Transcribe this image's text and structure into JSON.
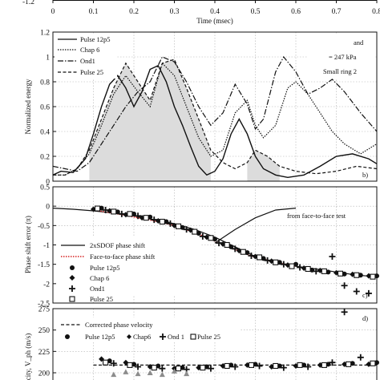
{
  "chart_data": [
    {
      "type": "line",
      "panel": "top-strip",
      "xlabel": "Time (msec)",
      "x_ticks": [
        "0",
        "0.1",
        "0.2",
        "0.3",
        "0.4",
        "0.5",
        "0.6",
        "0.7",
        "0.8"
      ],
      "y_tick_visible": "-1.2",
      "xlim": [
        0,
        0.8
      ]
    },
    {
      "type": "area",
      "panel": "b",
      "panel_label": "b)",
      "ylabel": "Normalized energy",
      "y_ticks": [
        "0",
        "0.2",
        "0.4",
        "0.6",
        "0.8",
        "1",
        "1.2"
      ],
      "ylim": [
        0,
        1.2
      ],
      "xlim": [
        0,
        0.8
      ],
      "grid": true,
      "legend_position": "top-left",
      "annotations": [
        "and",
        "= 247 kPa",
        "Small ring 2"
      ],
      "series": [
        {
          "name": "Pulse 12p5",
          "style": "solid",
          "x": [
            0,
            0.02,
            0.05,
            0.08,
            0.1,
            0.12,
            0.14,
            0.16,
            0.18,
            0.2,
            0.22,
            0.24,
            0.26,
            0.28,
            0.3,
            0.32,
            0.34,
            0.36,
            0.38,
            0.4,
            0.42,
            0.44,
            0.46,
            0.48,
            0.5,
            0.52,
            0.55,
            0.58,
            0.62,
            0.66,
            0.7,
            0.74,
            0.78,
            0.8
          ],
          "y": [
            0.05,
            0.08,
            0.07,
            0.18,
            0.38,
            0.6,
            0.78,
            0.85,
            0.75,
            0.6,
            0.72,
            0.9,
            0.93,
            0.8,
            0.6,
            0.45,
            0.28,
            0.12,
            0.05,
            0.08,
            0.18,
            0.38,
            0.5,
            0.38,
            0.2,
            0.1,
            0.05,
            0.03,
            0.05,
            0.12,
            0.2,
            0.22,
            0.18,
            0.14
          ]
        },
        {
          "name": "Chap 6",
          "style": "dotted",
          "x": [
            0,
            0.03,
            0.06,
            0.09,
            0.12,
            0.15,
            0.18,
            0.21,
            0.24,
            0.27,
            0.3,
            0.33,
            0.36,
            0.39,
            0.42,
            0.45,
            0.48,
            0.5,
            0.52,
            0.55,
            0.58,
            0.6,
            0.63,
            0.66,
            0.69,
            0.72,
            0.76,
            0.8
          ],
          "y": [
            0.05,
            0.05,
            0.1,
            0.22,
            0.45,
            0.7,
            0.85,
            0.72,
            0.6,
            0.95,
            0.85,
            0.6,
            0.35,
            0.2,
            0.25,
            0.55,
            0.65,
            0.45,
            0.35,
            0.45,
            0.75,
            0.8,
            0.7,
            0.55,
            0.4,
            0.3,
            0.22,
            0.3
          ]
        },
        {
          "name": "Ond1",
          "style": "dash-dot",
          "x": [
            0,
            0.03,
            0.06,
            0.09,
            0.12,
            0.15,
            0.18,
            0.21,
            0.24,
            0.27,
            0.3,
            0.33,
            0.36,
            0.39,
            0.42,
            0.45,
            0.48,
            0.5,
            0.52,
            0.55,
            0.57,
            0.6,
            0.63,
            0.66,
            0.69,
            0.72,
            0.76,
            0.8
          ],
          "y": [
            0.12,
            0.1,
            0.08,
            0.15,
            0.3,
            0.45,
            0.6,
            0.72,
            0.8,
            1.0,
            0.96,
            0.8,
            0.6,
            0.45,
            0.55,
            0.78,
            0.62,
            0.42,
            0.5,
            0.88,
            1.0,
            0.88,
            0.7,
            0.75,
            0.82,
            0.72,
            0.55,
            0.4
          ]
        },
        {
          "name": "Pulse 25",
          "style": "dashed",
          "x": [
            0,
            0.03,
            0.06,
            0.09,
            0.12,
            0.15,
            0.18,
            0.21,
            0.24,
            0.27,
            0.3,
            0.33,
            0.36,
            0.39,
            0.42,
            0.45,
            0.48,
            0.5,
            0.53,
            0.56,
            0.6,
            0.65,
            0.7,
            0.75,
            0.8
          ],
          "y": [
            0.05,
            0.05,
            0.1,
            0.25,
            0.5,
            0.75,
            0.95,
            0.8,
            0.65,
            0.95,
            0.98,
            0.75,
            0.5,
            0.25,
            0.15,
            0.1,
            0.15,
            0.25,
            0.2,
            0.12,
            0.08,
            0.06,
            0.08,
            0.12,
            0.1
          ]
        }
      ]
    },
    {
      "type": "scatter",
      "panel": "c",
      "panel_label": "c)",
      "ylabel": "Phase shift error (π)",
      "y_ticks": [
        "0.5",
        "0",
        "-0.5",
        "-1",
        "-1.5",
        "-2",
        "-2.5"
      ],
      "ylim": [
        -2.5,
        0.5
      ],
      "xlim": [
        0,
        0.8
      ],
      "grid": true,
      "legend_position": "left",
      "annotation": "from face-to-face test",
      "lines": [
        {
          "name": "2xSDOF phase shift",
          "style": "solid",
          "x": [
            0,
            0.05,
            0.1,
            0.15,
            0.2,
            0.25,
            0.3,
            0.35,
            0.4,
            0.45,
            0.5,
            0.55,
            0.6,
            0.65,
            0.7,
            0.75,
            0.8
          ],
          "y": [
            -0.05,
            -0.08,
            -0.12,
            -0.18,
            -0.25,
            -0.35,
            -0.45,
            -0.6,
            -0.8,
            -1.05,
            -1.3,
            -1.45,
            -1.55,
            -1.62,
            -1.7,
            -1.78,
            -1.82
          ]
        },
        {
          "name": "Face-to-face phase shift",
          "style": "dotted",
          "color": "#d62020",
          "x": [
            0.1,
            0.15,
            0.2,
            0.25,
            0.3,
            0.35,
            0.4,
            0.45,
            0.5,
            0.55,
            0.6
          ],
          "y": [
            -0.1,
            -0.18,
            -0.28,
            -0.38,
            -0.5,
            -0.68,
            -0.9,
            -1.12,
            -1.32,
            -1.45,
            -1.55
          ]
        },
        {
          "name": "from face-to-face test",
          "style": "solid",
          "x": [
            0.4,
            0.45,
            0.5,
            0.55,
            0.6
          ],
          "y": [
            -0.95,
            -0.6,
            -0.3,
            -0.1,
            -0.05
          ]
        }
      ],
      "series": [
        {
          "name": "Pulse 12p5",
          "marker": "circle",
          "x": [
            0.12,
            0.16,
            0.2,
            0.24,
            0.28,
            0.32,
            0.36,
            0.4,
            0.44,
            0.48,
            0.52,
            0.56,
            0.6,
            0.64,
            0.68,
            0.72,
            0.76,
            0.8
          ],
          "y": [
            -0.05,
            -0.15,
            -0.2,
            -0.28,
            -0.4,
            -0.55,
            -0.7,
            -0.85,
            -1.05,
            -1.2,
            -1.35,
            -1.45,
            -1.5,
            -1.65,
            -1.7,
            -1.75,
            -1.78,
            -1.8
          ]
        },
        {
          "name": "Chap 6",
          "marker": "diamond",
          "x": [
            0.1,
            0.14,
            0.18,
            0.22,
            0.26,
            0.3,
            0.34,
            0.38,
            0.42,
            0.46,
            0.5,
            0.54,
            0.58,
            0.62,
            0.66,
            0.7,
            0.74,
            0.78
          ],
          "y": [
            -0.08,
            -0.12,
            -0.22,
            -0.3,
            -0.38,
            -0.5,
            -0.62,
            -0.8,
            -0.98,
            -1.15,
            -1.3,
            -1.42,
            -1.52,
            -1.6,
            -1.66,
            -1.72,
            -1.76,
            -1.8
          ]
        },
        {
          "name": "Ond1",
          "marker": "plus",
          "x": [
            0.13,
            0.17,
            0.21,
            0.25,
            0.29,
            0.33,
            0.37,
            0.41,
            0.45,
            0.49,
            0.53,
            0.57,
            0.61,
            0.65,
            0.69,
            0.72,
            0.75,
            0.78
          ],
          "y": [
            -0.1,
            -0.2,
            -0.25,
            -0.35,
            -0.45,
            -0.6,
            -0.78,
            -0.95,
            -1.1,
            -1.28,
            -1.4,
            -1.5,
            -1.58,
            -1.68,
            -1.3,
            -2.05,
            -2.2,
            -2.25
          ]
        },
        {
          "name": "Pulse 25",
          "marker": "square-open",
          "x": [
            0.11,
            0.15,
            0.19,
            0.23,
            0.27,
            0.31,
            0.35,
            0.39,
            0.43,
            0.47,
            0.51,
            0.55,
            0.59,
            0.63,
            0.67,
            0.71,
            0.75,
            0.79
          ],
          "y": [
            -0.06,
            -0.14,
            -0.2,
            -0.3,
            -0.4,
            -0.52,
            -0.66,
            -0.82,
            -1.0,
            -1.18,
            -1.32,
            -1.45,
            -1.55,
            -1.62,
            -1.68,
            -1.74,
            -1.78,
            -1.82
          ]
        }
      ]
    },
    {
      "type": "scatter",
      "panel": "d",
      "panel_label": "d)",
      "ylabel": "city, V_ph (m/s)",
      "y_ticks": [
        "275",
        "250",
        "225",
        "200"
      ],
      "ylim": [
        195,
        275
      ],
      "xlim": [
        0,
        0.8
      ],
      "grid": true,
      "legend_entries": [
        "Corrected phase velocity",
        "Pulse 12p5",
        "Chap6",
        "Ond 1",
        "Pulse 25"
      ],
      "lines": [
        {
          "name": "Corrected phase velocity",
          "style": "dashed",
          "x": [
            0.1,
            0.2,
            0.3,
            0.4,
            0.5,
            0.6,
            0.7,
            0.8
          ],
          "y": [
            209,
            209,
            209,
            209,
            209,
            209,
            209,
            209
          ]
        }
      ],
      "series": [
        {
          "name": "Pulse 12p5",
          "marker": "circle",
          "x": [
            0.14,
            0.2,
            0.26,
            0.32,
            0.38,
            0.44,
            0.5,
            0.56,
            0.62,
            0.68,
            0.74,
            0.8
          ],
          "y": [
            214,
            210,
            208,
            206,
            207,
            209,
            210,
            208,
            209,
            210,
            211,
            212
          ]
        },
        {
          "name": "Chap6",
          "marker": "diamond",
          "x": [
            0.12,
            0.18,
            0.24,
            0.3,
            0.36,
            0.42,
            0.48,
            0.54,
            0.6,
            0.66,
            0.72,
            0.78
          ],
          "y": [
            216,
            212,
            207,
            205,
            206,
            208,
            209,
            207,
            208,
            209,
            210,
            210
          ]
        },
        {
          "name": "Ond 1",
          "marker": "plus",
          "x": [
            0.15,
            0.21,
            0.27,
            0.33,
            0.39,
            0.45,
            0.51,
            0.57,
            0.63,
            0.69,
            0.72,
            0.76
          ],
          "y": [
            211,
            207,
            205,
            204,
            205,
            207,
            208,
            206,
            207,
            212,
            271,
            218
          ]
        },
        {
          "name": "Pulse 25",
          "marker": "square-open",
          "x": [
            0.13,
            0.19,
            0.25,
            0.31,
            0.37,
            0.43,
            0.49,
            0.55,
            0.61,
            0.67,
            0.73,
            0.79
          ],
          "y": [
            212,
            209,
            206,
            205,
            206,
            208,
            209,
            208,
            209,
            209,
            210,
            211
          ]
        },
        {
          "name": "",
          "marker": "triangle-gray",
          "x": [
            0.15,
            0.18,
            0.21,
            0.24,
            0.27,
            0.3,
            0.33
          ],
          "y": [
            198,
            201,
            199,
            200,
            198,
            202,
            199
          ]
        }
      ]
    }
  ]
}
